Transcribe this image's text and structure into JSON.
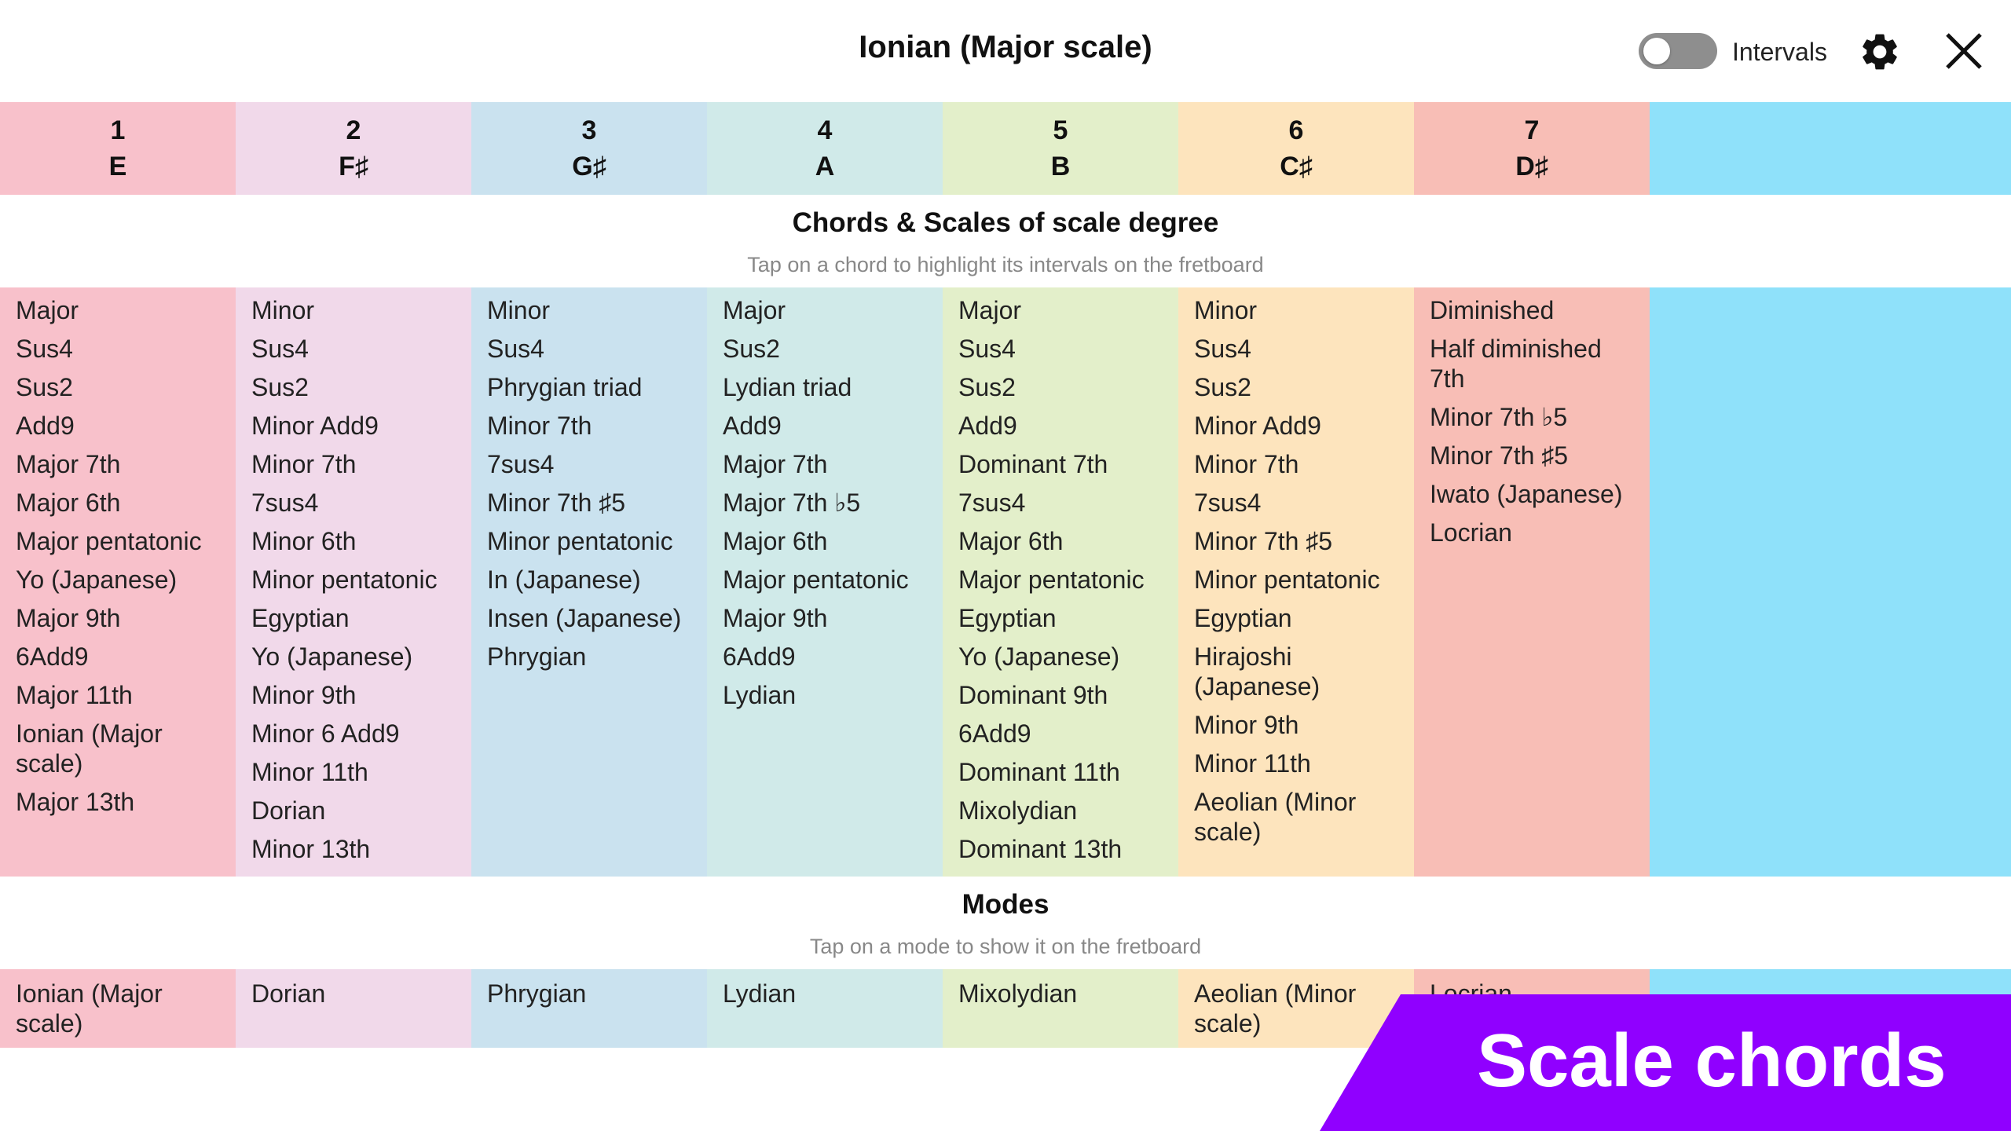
{
  "header": {
    "title": "Ionian (Major scale)",
    "toggle_label": "Intervals",
    "toggle_on": false,
    "icons": {
      "settings": "gear-icon",
      "close": "close-icon"
    }
  },
  "degrees": [
    {
      "number": "1",
      "note": "E",
      "color": "#f8c1cb"
    },
    {
      "number": "2",
      "note": "F♯",
      "color": "#f1d9ea"
    },
    {
      "number": "3",
      "note": "G♯",
      "color": "#cae2ef"
    },
    {
      "number": "4",
      "note": "A",
      "color": "#d0eae9"
    },
    {
      "number": "5",
      "note": "B",
      "color": "#e3efca"
    },
    {
      "number": "6",
      "note": "C♯",
      "color": "#fde4bd"
    },
    {
      "number": "7",
      "note": "D♯",
      "color": "#f8beb6"
    }
  ],
  "chords_section": {
    "title": "Chords & Scales of scale degree",
    "subtitle": "Tap on a chord to highlight its intervals on the fretboard"
  },
  "chords": [
    [
      "Major",
      "Sus4",
      "Sus2",
      "Add9",
      "Major 7th",
      "Major 6th",
      "Major pentatonic",
      "Yo (Japanese)",
      "Major 9th",
      "6Add9",
      "Major 11th",
      "Ionian (Major scale)",
      "Major 13th"
    ],
    [
      "Minor",
      "Sus4",
      "Sus2",
      "Minor Add9",
      "Minor 7th",
      "7sus4",
      "Minor 6th",
      "Minor pentatonic",
      "Egyptian",
      "Yo (Japanese)",
      "Minor 9th",
      "Minor 6 Add9",
      "Minor 11th",
      "Dorian",
      "Minor 13th"
    ],
    [
      "Minor",
      "Sus4",
      "Phrygian triad",
      "Minor 7th",
      "7sus4",
      "Minor 7th ♯5",
      "Minor pentatonic",
      "In (Japanese)",
      "Insen (Japanese)",
      "Phrygian"
    ],
    [
      "Major",
      "Sus2",
      "Lydian triad",
      "Add9",
      "Major 7th",
      "Major 7th ♭5",
      "Major 6th",
      "Major pentatonic",
      "Major 9th",
      "6Add9",
      "Lydian"
    ],
    [
      "Major",
      "Sus4",
      "Sus2",
      "Add9",
      "Dominant 7th",
      "7sus4",
      "Major 6th",
      "Major pentatonic",
      "Egyptian",
      "Yo (Japanese)",
      "Dominant 9th",
      "6Add9",
      "Dominant 11th",
      "Mixolydian",
      "Dominant 13th"
    ],
    [
      "Minor",
      "Sus4",
      "Sus2",
      "Minor Add9",
      "Minor 7th",
      "7sus4",
      "Minor 7th ♯5",
      "Minor pentatonic",
      "Egyptian",
      "Hirajoshi (Japanese)",
      "Minor 9th",
      "Minor 11th",
      "Aeolian (Minor scale)"
    ],
    [
      "Diminished",
      "Half diminished 7th",
      "Minor 7th ♭5",
      "Minor 7th ♯5",
      "Iwato (Japanese)",
      "Locrian"
    ]
  ],
  "modes_section": {
    "title": "Modes",
    "subtitle": "Tap on a mode to show it on the fretboard"
  },
  "modes": [
    "Ionian (Major scale)",
    "Dorian",
    "Phrygian",
    "Lydian",
    "Mixolydian",
    "Aeolian (Minor scale)",
    "Locrian"
  ],
  "banner": {
    "text": "Scale chords",
    "color": "#9000ff"
  },
  "filler_color": "#8fe1fa"
}
